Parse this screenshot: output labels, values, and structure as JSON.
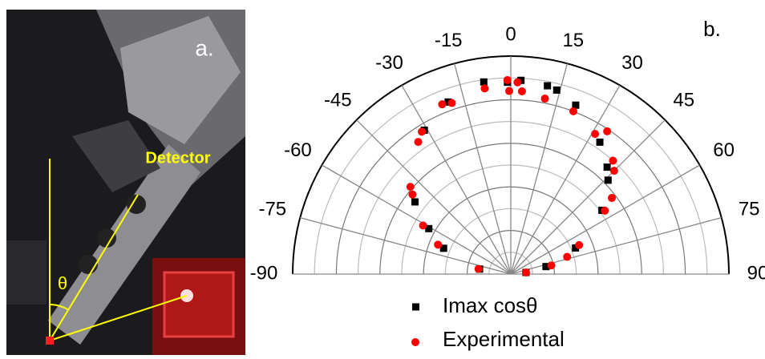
{
  "panel_a": {
    "label": "a.",
    "detector_label": "Detector",
    "angle_symbol": "θ"
  },
  "chart_data": {
    "type": "polar-scatter",
    "panel_label": "b.",
    "thetalim": [
      -90,
      90
    ],
    "thetaticks": [
      -90,
      -75,
      -60,
      -45,
      -30,
      -15,
      0,
      15,
      30,
      45,
      60,
      75,
      90
    ],
    "rlim": [
      0,
      1
    ],
    "rticks": [
      0.1,
      0.2,
      0.3,
      0.4,
      0.5,
      0.6,
      0.7,
      0.8,
      0.9,
      1
    ],
    "grid": true,
    "series": [
      {
        "name": "Imax cosθ",
        "color": "#000000",
        "marker": "square",
        "x": [
          -81,
          -69,
          -61,
          -53,
          -31,
          -20,
          -8,
          -1,
          3,
          11,
          14,
          21,
          34,
          42,
          46,
          55,
          68,
          78,
          84
        ],
        "values": [
          0.145,
          0.33,
          0.43,
          0.55,
          0.77,
          0.84,
          0.89,
          0.88,
          0.89,
          0.88,
          0.87,
          0.83,
          0.73,
          0.66,
          0.62,
          0.51,
          0.32,
          0.165,
          0.07
        ]
      },
      {
        "name": "Experimental",
        "color": "#ff0000",
        "marker": "circle",
        "x": [
          -81,
          -68,
          -61,
          -51,
          -49,
          -35,
          -32,
          -22,
          -19,
          -8,
          -1,
          -0.5,
          2,
          3.5,
          11,
          21,
          31,
          34,
          42,
          45,
          53,
          56,
          67,
          73,
          78,
          84
        ],
        "values": [
          0.15,
          0.36,
          0.46,
          0.58,
          0.61,
          0.74,
          0.77,
          0.84,
          0.83,
          0.86,
          0.89,
          0.84,
          0.88,
          0.84,
          0.82,
          0.8,
          0.75,
          0.79,
          0.7,
          0.67,
          0.58,
          0.52,
          0.34,
          0.27,
          0.19,
          0.07
        ]
      }
    ]
  }
}
